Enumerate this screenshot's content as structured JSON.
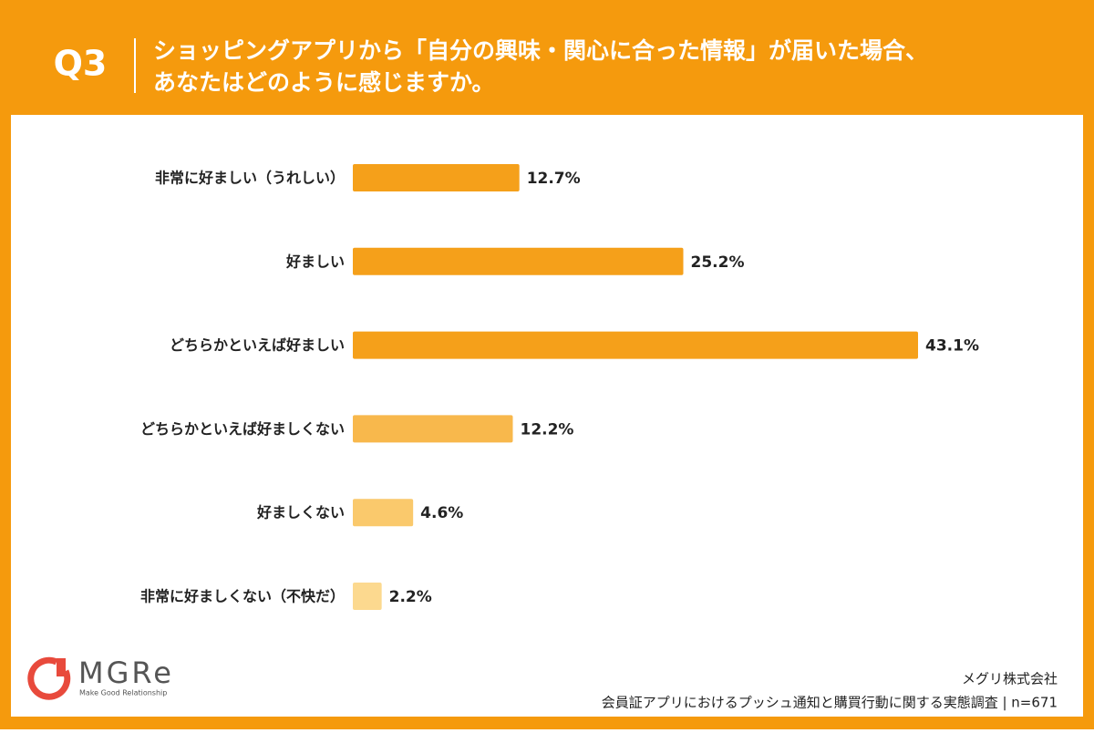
{
  "chart_data": {
    "type": "bar",
    "orientation": "horizontal",
    "question": "Q3",
    "title": [
      "ショッピングアプリから「自分の興味・関心に合った情報」が届いた場合、",
      "あなたはどのように感じますか。"
    ],
    "categories": [
      "非常に好ましい（うれしい）",
      "好ましい",
      "どちらかといえば好ましい",
      "どちらかといえば好ましくない",
      "好ましくない",
      "非常に好ましくない（不快だ）"
    ],
    "values": [
      12.7,
      25.2,
      43.1,
      12.2,
      4.6,
      2.2
    ],
    "value_labels": [
      "12.7%",
      "25.2%",
      "43.1%",
      "12.2%",
      "4.6%",
      "2.2%"
    ],
    "colors": [
      "#f5a01a",
      "#f5a01a",
      "#f5a01a",
      "#f8b84c",
      "#fac96c",
      "#fcd98f"
    ],
    "logo": "MGRe",
    "logo_tagline": "Make Good Relationship",
    "source": "メグリ株式会社",
    "note": "会員証アプリにおけるプッシュ通知と購買行動に関する実態調査 | n=671"
  }
}
